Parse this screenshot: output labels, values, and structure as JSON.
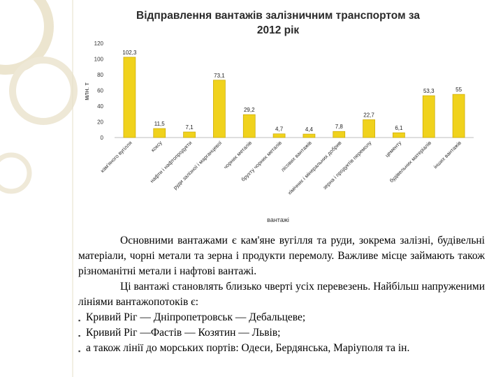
{
  "chart_data": {
    "type": "bar",
    "title_line1": "Відправлення вантажів залізничним транспортом за",
    "title_line2": "2012 рік",
    "ylabel": "млн. т",
    "xlabel": "вантажі",
    "ylim": [
      0,
      120
    ],
    "yticks": [
      "0",
      "20",
      "40",
      "60",
      "80",
      "100",
      "120"
    ],
    "grid": false,
    "categories": [
      "кам'яного вугілля",
      "коксу",
      "нафти і нафтопродукти",
      "руди залізної і марганцевої",
      "чорних металів",
      "брухту чорних металів",
      "лісових вантажів",
      "хімічних і мінеральних добрив",
      "зерна і продуктів перемолу",
      "цементу",
      "будівельних матеріалів",
      "інших вантажів"
    ],
    "values": [
      102.3,
      11.5,
      7.1,
      73.1,
      29.2,
      4.7,
      4.4,
      7.8,
      22.7,
      6.1,
      53.3,
      55
    ],
    "data_labels": [
      "102,3",
      "11,5",
      "7,1",
      "73,1",
      "29,2",
      "4,7",
      "4,4",
      "7,8",
      "22,7",
      "6,1",
      "53,3",
      "55"
    ],
    "bar_color": "#f0d21c",
    "bar_edge_color": "#c9a800"
  },
  "text": {
    "para1": "Основними вантажами є кам'яне вугілля та руди, зокрема залізні, будівельні матеріали, чорні метали та зерна і продукти перемолу. Важливе місце займають також різноманітні метали і нафтові вантажі.",
    "para2": "Ці вантажі становлять близько чверті усіх перевезень. Найбільш напруженими лініями вантажопотоків є:",
    "bullet_glyph": "▪",
    "bullets": [
      "Кривий Ріг — Дніпропетровськ — Дебальцеве;",
      "Кривий Ріг —Фастів — Козятин — Львів;",
      "а також лінії до морських портів: Одеси, Бердянська, Маріуполя та ін."
    ]
  }
}
